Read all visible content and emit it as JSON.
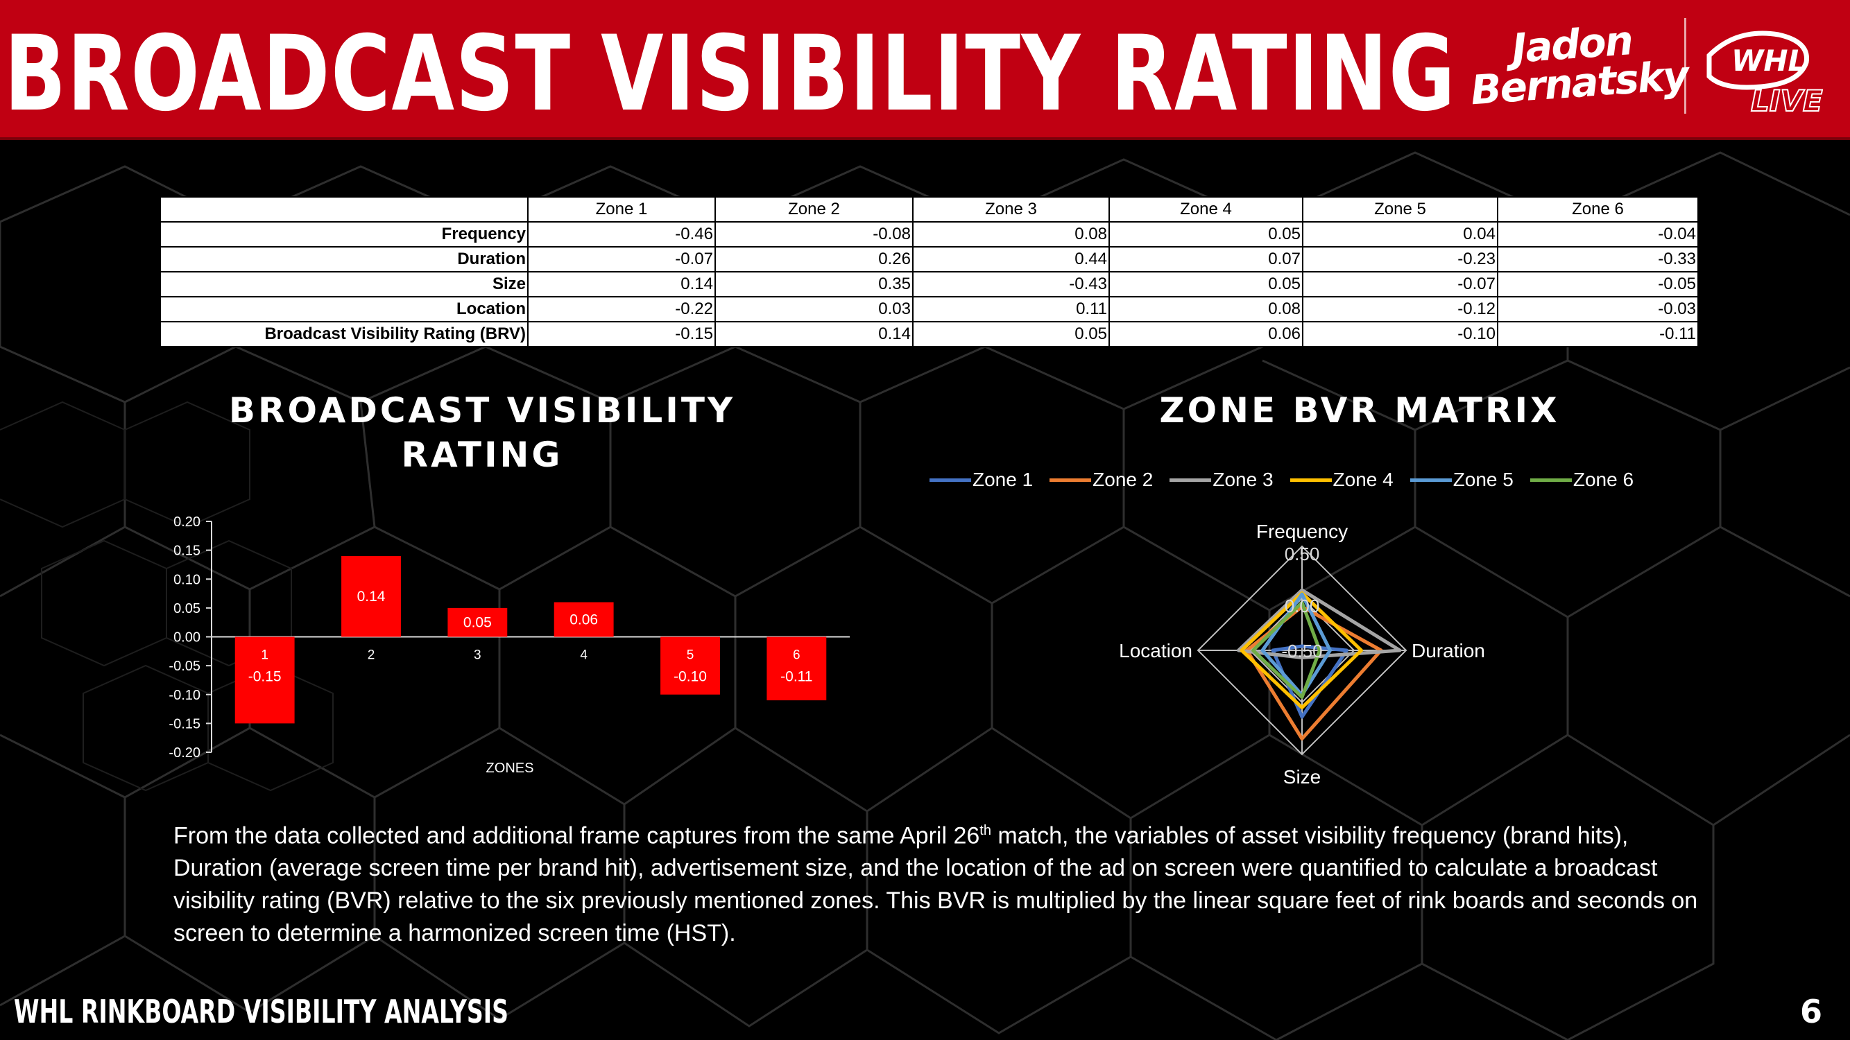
{
  "header": {
    "title": "BROADCAST VISIBILITY RATING",
    "logo_jadon": "Jadon",
    "logo_bernatsky": "Bernatsky",
    "logo_whl": "WHL",
    "logo_live": "LIVE"
  },
  "table": {
    "columns": [
      "Zone 1",
      "Zone 2",
      "Zone 3",
      "Zone 4",
      "Zone 5",
      "Zone 6"
    ],
    "rows": [
      {
        "label": "Frequency",
        "values": [
          "-0.46",
          "-0.08",
          "0.08",
          "0.05",
          "0.04",
          "-0.04"
        ]
      },
      {
        "label": "Duration",
        "values": [
          "-0.07",
          "0.26",
          "0.44",
          "0.07",
          "-0.23",
          "-0.33"
        ]
      },
      {
        "label": "Size",
        "values": [
          "0.14",
          "0.35",
          "-0.43",
          "0.05",
          "-0.07",
          "-0.05"
        ]
      },
      {
        "label": "Location",
        "values": [
          "-0.22",
          "0.03",
          "0.11",
          "0.08",
          "-0.12",
          "-0.03"
        ]
      },
      {
        "label": "Broadcast Visibility Rating (BRV)",
        "values": [
          "-0.15",
          "0.14",
          "0.05",
          "0.06",
          "-0.10",
          "-0.11"
        ]
      }
    ]
  },
  "bar_title_line1": "BROADCAST VISIBILITY",
  "bar_title_line2": "RATING",
  "radar_title": "ZONE BVR MATRIX",
  "chart_data": [
    {
      "type": "bar",
      "title": "BROADCAST VISIBILITY RATING",
      "xlabel": "ZONES",
      "ylabel": "",
      "categories": [
        "1",
        "2",
        "3",
        "4",
        "5",
        "6"
      ],
      "values": [
        -0.15,
        0.14,
        0.05,
        0.06,
        -0.1,
        -0.11
      ],
      "data_labels": [
        "-0.15",
        "0.14",
        "0.05",
        "0.06",
        "-0.10",
        "-0.11"
      ],
      "ylim": [
        -0.2,
        0.2
      ],
      "yticks": [
        "0.20",
        "0.15",
        "0.10",
        "0.05",
        "0.00",
        "-0.05",
        "-0.10",
        "-0.15",
        "-0.20"
      ],
      "bar_color": "#ff0000",
      "grid": false
    },
    {
      "type": "radar",
      "title": "ZONE BVR MATRIX",
      "axes": [
        "Frequency",
        "Duration",
        "Size",
        "Location"
      ],
      "rlim": [
        -0.5,
        0.5
      ],
      "rticks": [
        "0.50",
        "0.00",
        "-0.50"
      ],
      "legend_position": "top",
      "series": [
        {
          "name": "Zone 1",
          "values": [
            -0.46,
            -0.07,
            0.14,
            -0.22
          ],
          "color": "#4472c4"
        },
        {
          "name": "Zone 2",
          "values": [
            -0.08,
            0.26,
            0.35,
            0.03
          ],
          "color": "#ed7d31"
        },
        {
          "name": "Zone 3",
          "values": [
            0.08,
            0.44,
            -0.43,
            0.11
          ],
          "color": "#a5a5a5"
        },
        {
          "name": "Zone 4",
          "values": [
            0.05,
            0.07,
            0.05,
            0.08
          ],
          "color": "#ffc000"
        },
        {
          "name": "Zone 5",
          "values": [
            0.04,
            -0.23,
            -0.07,
            -0.12
          ],
          "color": "#5b9bd5"
        },
        {
          "name": "Zone 6",
          "values": [
            -0.04,
            -0.33,
            -0.05,
            -0.03
          ],
          "color": "#70ad47"
        }
      ]
    }
  ],
  "paragraph": {
    "part1": "From the data collected and additional frame captures from the same April 26",
    "sup": "th",
    "part2": " match, the variables of asset visibility frequency (brand hits), Duration (average screen time per brand hit), advertisement size, and the location of the ad on screen were quantified to calculate a broadcast visibility rating (BVR) relative to the six previously mentioned zones. This BVR is multiplied by the linear square feet of rink boards and seconds on screen to determine a harmonized screen time (HST)."
  },
  "footer": {
    "title": "WHL RINKBOARD VISIBILITY ANALYSIS",
    "page": "6"
  },
  "colors": {
    "header_red": "#c00012",
    "background": "#000000",
    "bar_red": "#ff0000"
  }
}
